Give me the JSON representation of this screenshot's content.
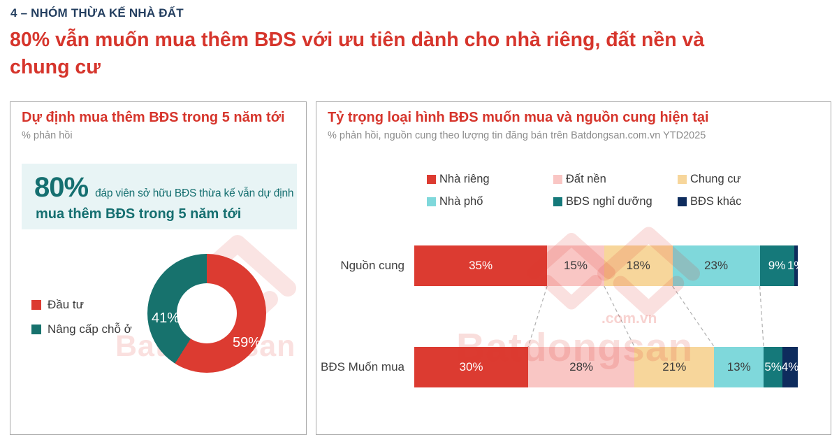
{
  "header": {
    "kicker": "4 – NHÓM THỪA KẾ NHÀ ĐẤT",
    "title": "80% vẫn muốn mua thêm BĐS với ưu tiên dành cho nhà riêng, đất nền và chung cư"
  },
  "left_panel": {
    "title": "Dự định mua thêm BĐS trong 5 năm tới",
    "subtitle": "% phản hồi",
    "highlight": {
      "value": "80%",
      "line1": "đáp viên sở hữu BĐS thừa kế vẫn dự định",
      "line2": "mua thêm BĐS trong 5 năm tới"
    }
  },
  "right_panel": {
    "title": "Tỷ trọng loại hình BĐS muốn mua và nguồn cung hiện tại",
    "subtitle": "% phản hồi, nguồn cung theo lượng tin đăng bán trên Batdongsan.com.vn YTD2025"
  },
  "watermark": {
    "brand": "Batdongsan",
    "com_vn": ".com.vn",
    "vn": ".vn"
  },
  "colors": {
    "title_red": "#d6352c",
    "kicker_navy": "#233e5f",
    "highlight_teal": "#156f70",
    "highlight_bg": "#e8f4f5"
  },
  "chart_data": [
    {
      "id": "purchase-intent-donut",
      "type": "pie",
      "donut": true,
      "title": "Dự định mua thêm BĐS trong 5 năm tới",
      "subtitle": "% phản hồi",
      "labels": [
        "Đầu tư",
        "Nâng cấp chỗ ở"
      ],
      "values": [
        59,
        41
      ],
      "value_labels": [
        "59%",
        "41%"
      ],
      "colors": [
        "#dc3b31",
        "#17726d"
      ],
      "legend_position": "left",
      "start_angle_deg": 0,
      "direction": "clockwise"
    },
    {
      "id": "property-type-stacked-bars",
      "type": "bar",
      "stacked": true,
      "orientation": "horizontal",
      "title": "Tỷ trọng loại hình BĐS muốn mua và nguồn cung hiện tại",
      "subtitle": "% phản hồi, nguồn cung theo lượng tin đăng bán trên Batdongsan.com.vn YTD2025",
      "categories": [
        "Nguồn cung",
        "BĐS Muốn mua"
      ],
      "unit": "%",
      "xlim": [
        0,
        100
      ],
      "grid": false,
      "legend_position": "top",
      "series": [
        {
          "name": "Nhà riêng",
          "color": "#dc3b31",
          "values": [
            35,
            30
          ]
        },
        {
          "name": "Đất nền",
          "color": "#f9c6c4",
          "values": [
            15,
            28
          ]
        },
        {
          "name": "Chung cư",
          "color": "#f7d69b",
          "values": [
            18,
            21
          ]
        },
        {
          "name": "Nhà phố",
          "color": "#7fd8db",
          "values": [
            23,
            13
          ]
        },
        {
          "name": "BĐS nghỉ dưỡng",
          "color": "#15797a",
          "values": [
            9,
            5
          ]
        },
        {
          "name": "BĐS khác",
          "color": "#0e2c5d",
          "values": [
            1,
            4
          ]
        }
      ]
    }
  ]
}
